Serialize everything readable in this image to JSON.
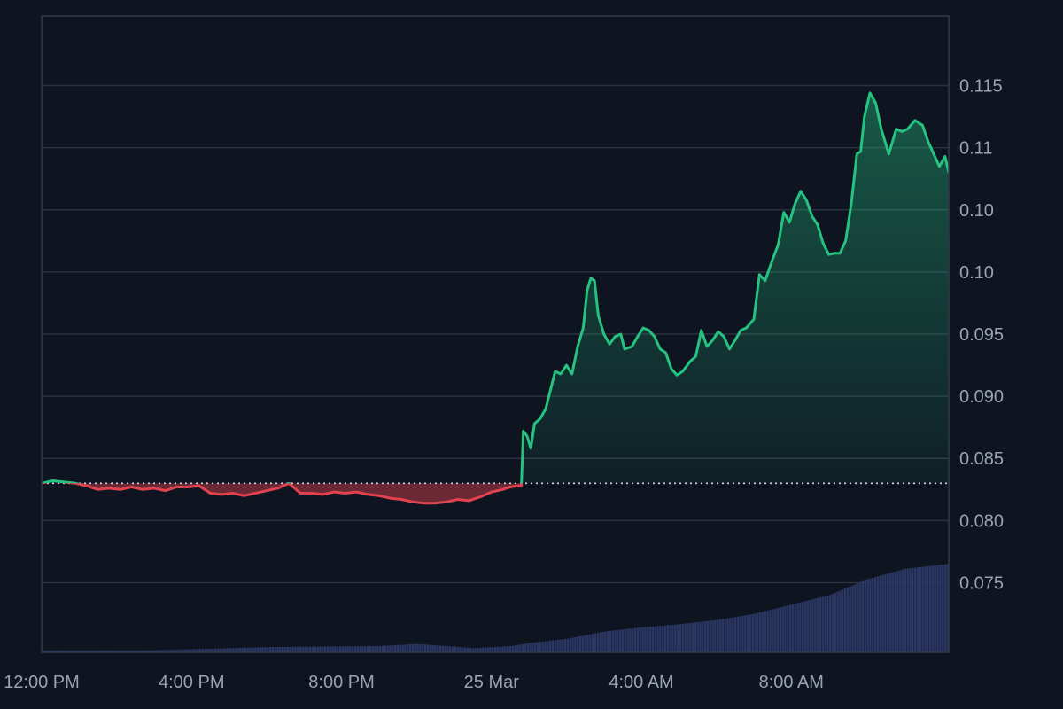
{
  "colors": {
    "background": "#0e1420",
    "grid": "#2a3140",
    "frame": "#323a4a",
    "up_line": "#26c281",
    "down_line": "#e0434f",
    "volume": "#2b3763",
    "baseline": "#d0d4dc",
    "tick_text": "#9aa3b2"
  },
  "chart_data": {
    "type": "area",
    "baseline_value": 0.083,
    "grid": true,
    "x_tick_labels": [
      "12:00 PM",
      "4:00 PM",
      "8:00 PM",
      "25 Mar",
      "4:00 AM",
      "8:00 AM"
    ],
    "x_tick_hours": [
      0,
      4,
      8,
      12,
      16,
      20
    ],
    "x_range_hours": [
      0,
      24.2
    ],
    "y_tick_labels": [
      "0.115",
      "0.11",
      "0.10",
      "0.10",
      "0.095",
      "0.090",
      "0.085",
      "0.080",
      "0.075"
    ],
    "y_tick_values": [
      0.115,
      0.11,
      0.105,
      0.1,
      0.095,
      0.09,
      0.085,
      0.08,
      0.075
    ],
    "ylim": [
      0.0694,
      0.1206
    ],
    "series": [
      {
        "values": [
          [
            0,
            0.083
          ],
          [
            0.3,
            0.0832
          ],
          [
            0.6,
            0.0831
          ],
          [
            0.9,
            0.083
          ],
          [
            1.2,
            0.0828
          ],
          [
            1.5,
            0.0825
          ],
          [
            1.8,
            0.0826
          ],
          [
            2.1,
            0.0825
          ],
          [
            2.4,
            0.0827
          ],
          [
            2.7,
            0.0825
          ],
          [
            3.0,
            0.0826
          ],
          [
            3.3,
            0.0824
          ],
          [
            3.6,
            0.0827
          ],
          [
            3.9,
            0.0827
          ],
          [
            4.2,
            0.0828
          ],
          [
            4.5,
            0.0822
          ],
          [
            4.8,
            0.0821
          ],
          [
            5.1,
            0.0822
          ],
          [
            5.4,
            0.082
          ],
          [
            5.7,
            0.0822
          ],
          [
            6.0,
            0.0824
          ],
          [
            6.3,
            0.0826
          ],
          [
            6.6,
            0.083
          ],
          [
            6.9,
            0.0822
          ],
          [
            7.2,
            0.0822
          ],
          [
            7.5,
            0.0821
          ],
          [
            7.8,
            0.0823
          ],
          [
            8.1,
            0.0822
          ],
          [
            8.4,
            0.0823
          ],
          [
            8.7,
            0.0821
          ],
          [
            9.0,
            0.082
          ],
          [
            9.3,
            0.0818
          ],
          [
            9.6,
            0.0817
          ],
          [
            9.9,
            0.0815
          ],
          [
            10.2,
            0.0814
          ],
          [
            10.5,
            0.0814
          ],
          [
            10.8,
            0.0815
          ],
          [
            11.1,
            0.0817
          ],
          [
            11.4,
            0.0816
          ],
          [
            11.7,
            0.0819
          ],
          [
            12.0,
            0.0823
          ],
          [
            12.3,
            0.0825
          ],
          [
            12.5,
            0.0827
          ],
          [
            12.7,
            0.0828
          ],
          [
            12.8,
            0.0828
          ],
          [
            12.85,
            0.0872
          ],
          [
            12.95,
            0.0868
          ],
          [
            13.05,
            0.0858
          ],
          [
            13.15,
            0.0878
          ],
          [
            13.3,
            0.0882
          ],
          [
            13.45,
            0.089
          ],
          [
            13.7,
            0.092
          ],
          [
            13.85,
            0.0918
          ],
          [
            14.0,
            0.0925
          ],
          [
            14.15,
            0.0918
          ],
          [
            14.3,
            0.094
          ],
          [
            14.45,
            0.0955
          ],
          [
            14.55,
            0.0985
          ],
          [
            14.65,
            0.0995
          ],
          [
            14.75,
            0.0993
          ],
          [
            14.85,
            0.0965
          ],
          [
            15.0,
            0.095
          ],
          [
            15.15,
            0.0942
          ],
          [
            15.3,
            0.0948
          ],
          [
            15.45,
            0.095
          ],
          [
            15.55,
            0.0938
          ],
          [
            15.75,
            0.094
          ],
          [
            15.9,
            0.0948
          ],
          [
            16.05,
            0.0955
          ],
          [
            16.2,
            0.0953
          ],
          [
            16.35,
            0.0948
          ],
          [
            16.5,
            0.0938
          ],
          [
            16.65,
            0.0935
          ],
          [
            16.8,
            0.0922
          ],
          [
            16.95,
            0.0917
          ],
          [
            17.1,
            0.092
          ],
          [
            17.3,
            0.0928
          ],
          [
            17.45,
            0.0932
          ],
          [
            17.6,
            0.0953
          ],
          [
            17.75,
            0.094
          ],
          [
            17.9,
            0.0945
          ],
          [
            18.05,
            0.0952
          ],
          [
            18.2,
            0.0948
          ],
          [
            18.35,
            0.0938
          ],
          [
            18.5,
            0.0945
          ],
          [
            18.65,
            0.0953
          ],
          [
            18.8,
            0.0955
          ],
          [
            19.0,
            0.0962
          ],
          [
            19.15,
            0.0998
          ],
          [
            19.3,
            0.0993
          ],
          [
            19.5,
            0.101
          ],
          [
            19.65,
            0.1022
          ],
          [
            19.8,
            0.1048
          ],
          [
            19.95,
            0.104
          ],
          [
            20.1,
            0.1055
          ],
          [
            20.25,
            0.1065
          ],
          [
            20.4,
            0.1058
          ],
          [
            20.55,
            0.1045
          ],
          [
            20.7,
            0.1038
          ],
          [
            20.85,
            0.1023
          ],
          [
            21.0,
            0.1014
          ],
          [
            21.15,
            0.1015
          ],
          [
            21.3,
            0.1015
          ],
          [
            21.45,
            0.1025
          ],
          [
            21.6,
            0.1055
          ],
          [
            21.75,
            0.1095
          ],
          [
            21.85,
            0.1097
          ],
          [
            21.95,
            0.1125
          ],
          [
            22.1,
            0.1144
          ],
          [
            22.25,
            0.1136
          ],
          [
            22.4,
            0.1115
          ],
          [
            22.6,
            0.1095
          ],
          [
            22.8,
            0.1115
          ],
          [
            22.95,
            0.1113
          ],
          [
            23.1,
            0.1115
          ],
          [
            23.3,
            0.1122
          ],
          [
            23.5,
            0.1118
          ],
          [
            23.65,
            0.1105
          ],
          [
            23.8,
            0.1095
          ],
          [
            23.95,
            0.1085
          ],
          [
            24.1,
            0.1093
          ],
          [
            24.2,
            0.108
          ]
        ]
      }
    ],
    "volume": [
      [
        0,
        0.002
      ],
      [
        3,
        0.002
      ],
      [
        6,
        0.005
      ],
      [
        9,
        0.006
      ],
      [
        10,
        0.008
      ],
      [
        11.5,
        0.004
      ],
      [
        12.5,
        0.006
      ],
      [
        13,
        0.009
      ],
      [
        14,
        0.013
      ],
      [
        15,
        0.02
      ],
      [
        16,
        0.024
      ],
      [
        17,
        0.027
      ],
      [
        18,
        0.031
      ],
      [
        19,
        0.037
      ],
      [
        20,
        0.046
      ],
      [
        21,
        0.055
      ],
      [
        22,
        0.07
      ],
      [
        23,
        0.08
      ],
      [
        24.2,
        0.085
      ]
    ],
    "volume_max_hint": 0.085
  }
}
